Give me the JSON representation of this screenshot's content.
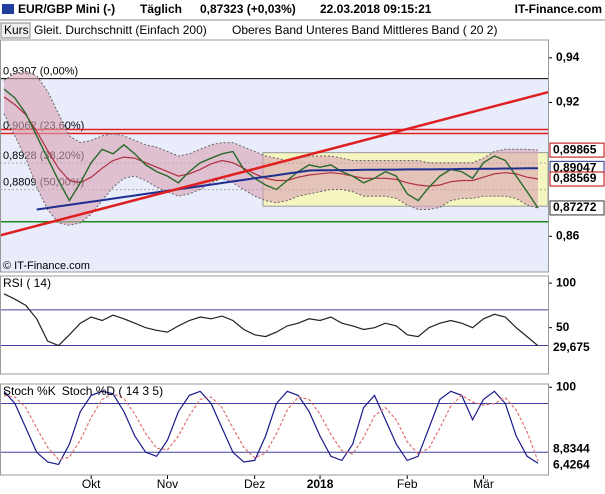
{
  "header": {
    "symbol": "EUR/GBP Mini (-)",
    "interval": "Täglich",
    "price": "0,87323 (+0,03%)",
    "datetime": "22.03.2018 09:15:21",
    "brand": "IT-Finance.com"
  },
  "chart_data": [
    {
      "type": "line",
      "watermark": "© IT-Finance.com",
      "ylim": [
        0.844,
        0.948
      ],
      "yticks": [
        {
          "value": 0.94,
          "label": "0,94"
        },
        {
          "value": 0.92,
          "label": "0,92"
        },
        {
          "value": 0.86,
          "label": "0,86"
        }
      ],
      "series": [
        {
          "name": "Kurs",
          "color": "#2a6a2a",
          "values": [
            0.926,
            0.922,
            0.915,
            0.905,
            0.895,
            0.885,
            0.876,
            0.884,
            0.893,
            0.899,
            0.897,
            0.901,
            0.897,
            0.892,
            0.889,
            0.887,
            0.884,
            0.889,
            0.893,
            0.895,
            0.897,
            0.898,
            0.89,
            0.886,
            0.883,
            0.881,
            0.885,
            0.889,
            0.892,
            0.891,
            0.892,
            0.889,
            0.887,
            0.884,
            0.886,
            0.889,
            0.887,
            0.879,
            0.876,
            0.882,
            0.887,
            0.89,
            0.889,
            0.886,
            0.893,
            0.896,
            0.894,
            0.887,
            0.88,
            0.8727
          ]
        },
        {
          "name": "Gleit. Durchschnitt (Einfach 200)",
          "color": "#1f2f8f",
          "values": [
            null,
            null,
            null,
            0.872,
            0.8727,
            0.8734,
            0.8741,
            0.8748,
            0.8755,
            0.8762,
            0.8769,
            0.8776,
            0.8783,
            0.879,
            0.8797,
            0.8804,
            0.8811,
            0.8818,
            0.8825,
            0.8832,
            0.8839,
            0.8846,
            0.8853,
            0.886,
            0.8867,
            0.8874,
            0.8881,
            0.8888,
            0.8895,
            0.8896,
            0.8896,
            0.8897,
            0.8897,
            0.8898,
            0.8898,
            0.8899,
            0.8899,
            0.89,
            0.89,
            0.89,
            0.8901,
            0.8901,
            0.8902,
            0.8902,
            0.8903,
            0.8903,
            0.8904,
            0.8904,
            0.8905,
            0.8905
          ]
        }
      ],
      "bands": {
        "name": "Oberes Band Unteres Band Mittleres Band ( 20 2)",
        "color": "#b03040",
        "fill": "#d9a3b4",
        "upper": [
          0.93,
          0.933,
          0.934,
          0.932,
          0.925,
          0.915,
          0.905,
          0.902,
          0.903,
          0.905,
          0.906,
          0.905,
          0.903,
          0.901,
          0.9,
          0.898,
          0.896,
          0.897,
          0.899,
          0.901,
          0.902,
          0.902,
          0.9,
          0.898,
          0.896,
          0.895,
          0.894,
          0.895,
          0.896,
          0.896,
          0.896,
          0.895,
          0.894,
          0.894,
          0.894,
          0.894,
          0.894,
          0.894,
          0.894,
          0.893,
          0.893,
          0.893,
          0.893,
          0.893,
          0.895,
          0.898,
          0.899,
          0.899,
          0.899,
          0.8987
        ],
        "lower": [
          0.915,
          0.905,
          0.895,
          0.882,
          0.872,
          0.866,
          0.865,
          0.866,
          0.87,
          0.876,
          0.882,
          0.886,
          0.887,
          0.885,
          0.882,
          0.88,
          0.878,
          0.879,
          0.881,
          0.884,
          0.886,
          0.884,
          0.881,
          0.878,
          0.876,
          0.875,
          0.876,
          0.878,
          0.879,
          0.88,
          0.881,
          0.881,
          0.88,
          0.878,
          0.878,
          0.878,
          0.877,
          0.874,
          0.872,
          0.872,
          0.873,
          0.876,
          0.877,
          0.877,
          0.878,
          0.878,
          0.878,
          0.877,
          0.874,
          0.8727
        ],
        "middle": [
          0.9225,
          0.919,
          0.9145,
          0.907,
          0.8985,
          0.8905,
          0.885,
          0.884,
          0.8865,
          0.8905,
          0.894,
          0.8955,
          0.895,
          0.893,
          0.891,
          0.889,
          0.887,
          0.888,
          0.89,
          0.8925,
          0.894,
          0.893,
          0.8905,
          0.888,
          0.886,
          0.885,
          0.885,
          0.8865,
          0.8875,
          0.888,
          0.8885,
          0.888,
          0.887,
          0.886,
          0.886,
          0.886,
          0.8855,
          0.884,
          0.883,
          0.8825,
          0.883,
          0.8845,
          0.885,
          0.885,
          0.8865,
          0.888,
          0.8885,
          0.888,
          0.8865,
          0.8857
        ]
      },
      "fib_levels": [
        {
          "value": 0.9307,
          "label": "0,9307 (0,00%)"
        },
        {
          "value": 0.9062,
          "label": "0,9062 (23,60%)"
        },
        {
          "value": 0.8928,
          "label": "0,8928 (38,20%)"
        },
        {
          "value": 0.8809,
          "label": "0,8809 (50,00%)"
        }
      ],
      "support": {
        "value": 0.8665,
        "color": "#1a8a1a"
      },
      "resistance": {
        "value": 0.907,
        "color": "#e02020"
      },
      "trend": {
        "values": [
          0.8604,
          0.9246
        ],
        "color": "#e02020"
      },
      "box": {
        "values": [
          0.8975,
          0.8735
        ],
        "color": "#f5f5c0"
      },
      "price_labels": [
        {
          "value": 0.89865,
          "label": "0,89865",
          "color": "#c00000"
        },
        {
          "value": 0.89047,
          "label": "0,89047",
          "color": "#1f2f8f"
        },
        {
          "value": 0.88569,
          "label": "0,88569",
          "color": "#c00000"
        },
        {
          "value": 0.87272,
          "label": "0,87272",
          "color": "#333333"
        }
      ]
    },
    {
      "type": "line",
      "ylim": [
        -2,
        108
      ],
      "yticks": [
        100,
        50
      ],
      "levels": [
        70,
        30
      ],
      "series": [
        {
          "name": "RSI ( 14)",
          "color": "#222222",
          "last_label": "29,675",
          "values": [
            88,
            82,
            75,
            60,
            35,
            30,
            42,
            55,
            62,
            58,
            64,
            60,
            55,
            50,
            47,
            45,
            52,
            58,
            62,
            60,
            63,
            58,
            48,
            42,
            40,
            45,
            52,
            55,
            60,
            58,
            62,
            55,
            52,
            48,
            50,
            55,
            52,
            42,
            40,
            50,
            55,
            58,
            55,
            50,
            60,
            65,
            62,
            50,
            40,
            29.675
          ]
        }
      ]
    },
    {
      "type": "line",
      "ylim": [
        -8,
        104
      ],
      "yticks": [
        100
      ],
      "levels": [
        80,
        20
      ],
      "categories": [
        null,
        null,
        null,
        null,
        null,
        null,
        null,
        null,
        "Okt",
        null,
        null,
        null,
        null,
        null,
        null,
        "Nov",
        null,
        null,
        null,
        null,
        null,
        null,
        null,
        "Dez",
        null,
        null,
        null,
        null,
        null,
        "2018",
        null,
        null,
        null,
        null,
        null,
        null,
        null,
        "Feb",
        null,
        null,
        null,
        null,
        null,
        null,
        "Mär",
        null,
        null,
        null,
        null,
        null
      ],
      "series": [
        {
          "name": "Stoch %K",
          "color": "#1a1a8a",
          "last_label": "6,4264",
          "values": [
            95,
            80,
            50,
            20,
            8,
            5,
            30,
            70,
            90,
            95,
            92,
            70,
            40,
            20,
            15,
            35,
            70,
            90,
            95,
            80,
            50,
            20,
            8,
            10,
            40,
            80,
            95,
            90,
            70,
            40,
            15,
            10,
            30,
            75,
            90,
            60,
            30,
            10,
            15,
            50,
            85,
            95,
            90,
            60,
            85,
            95,
            80,
            40,
            15,
            6.4264
          ]
        },
        {
          "name": "Stoch %D ( 14 3 5)",
          "color": "#e07070",
          "last_label": "8,8344",
          "values": [
            90,
            88,
            75,
            50,
            26,
            11,
            14,
            35,
            63,
            85,
            92,
            86,
            67,
            43,
            25,
            23,
            40,
            65,
            85,
            88,
            75,
            50,
            26,
            13,
            19,
            43,
            72,
            88,
            85,
            67,
            42,
            22,
            18,
            38,
            65,
            75,
            60,
            33,
            18,
            25,
            50,
            77,
            90,
            82,
            78,
            80,
            87,
            72,
            45,
            8.8344
          ]
        }
      ]
    }
  ]
}
